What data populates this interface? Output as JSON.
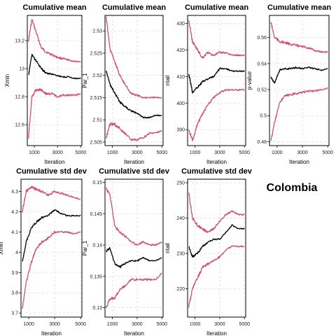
{
  "figure_label": "Colombia",
  "colors": {
    "mean": "#000000",
    "band": "#d64f6b",
    "grid": "#dddddd",
    "frame": "#000000"
  },
  "chart_data": [
    {
      "type": "line",
      "title": "Cumulative mean",
      "xlabel": "Iteration",
      "ylabel": "Xmin",
      "xlim": [
        400,
        5100
      ],
      "ylim": [
        12.45,
        13.38
      ],
      "xticks": [
        1000,
        3000,
        5000
      ],
      "yticks": [
        12.6,
        12.8,
        13.0,
        13.2
      ],
      "x": [
        500,
        800,
        1200,
        1600,
        2000,
        2500,
        3000,
        3500,
        4000,
        4500,
        5000
      ],
      "series": [
        {
          "role": "upper",
          "values": [
            13.2,
            13.35,
            13.25,
            13.15,
            13.12,
            13.1,
            13.08,
            13.07,
            13.06,
            13.05,
            13.05
          ]
        },
        {
          "role": "mean",
          "values": [
            12.95,
            13.1,
            13.05,
            13.0,
            12.97,
            12.96,
            12.95,
            12.94,
            12.94,
            12.93,
            12.93
          ]
        },
        {
          "role": "lower",
          "values": [
            12.5,
            12.8,
            12.85,
            12.85,
            12.82,
            12.82,
            12.8,
            12.81,
            12.81,
            12.81,
            12.82
          ]
        }
      ]
    },
    {
      "type": "line",
      "title": "Cumulative mean",
      "xlabel": "Iteration",
      "ylabel": "Par_1",
      "xlim": [
        400,
        5100
      ],
      "ylim": [
        2.5042,
        2.5335
      ],
      "xticks": [
        1000,
        3000,
        5000
      ],
      "yticks": [
        2.505,
        2.51,
        2.515,
        2.52,
        2.525,
        2.53
      ],
      "x": [
        500,
        800,
        1200,
        1600,
        2000,
        2500,
        3000,
        3500,
        4000,
        4500,
        5000
      ],
      "series": [
        {
          "role": "upper",
          "values": [
            2.533,
            2.526,
            2.523,
            2.52,
            2.518,
            2.516,
            2.5155,
            2.515,
            2.515,
            2.515,
            2.515
          ]
        },
        {
          "role": "mean",
          "values": [
            2.521,
            2.518,
            2.516,
            2.514,
            2.513,
            2.512,
            2.5115,
            2.5105,
            2.5105,
            2.511,
            2.511
          ]
        },
        {
          "role": "lower",
          "values": [
            2.506,
            2.509,
            2.509,
            2.508,
            2.507,
            2.5055,
            2.5055,
            2.506,
            2.507,
            2.507,
            2.5075
          ]
        }
      ]
    },
    {
      "type": "line",
      "title": "Cumulative mean",
      "xlabel": "Iteration",
      "ylabel": "ntail",
      "xlim": [
        400,
        5100
      ],
      "ylim": [
        384,
        433
      ],
      "xticks": [
        1000,
        3000,
        5000
      ],
      "yticks": [
        390,
        400,
        410,
        420,
        430
      ],
      "x": [
        500,
        800,
        1200,
        1600,
        2000,
        2500,
        3000,
        3500,
        4000,
        4500,
        5000
      ],
      "series": [
        {
          "role": "upper",
          "values": [
            431,
            423,
            420,
            417,
            419,
            418,
            419,
            419,
            418,
            418,
            418
          ]
        },
        {
          "role": "mean",
          "values": [
            411,
            404,
            406,
            408,
            409,
            410,
            413,
            413,
            412,
            412,
            412
          ]
        },
        {
          "role": "lower",
          "values": [
            390,
            386,
            392,
            396,
            399,
            402,
            404,
            405,
            405,
            405,
            405
          ]
        }
      ]
    },
    {
      "type": "line",
      "title": "Cumulative mean",
      "xlabel": "Iteration",
      "ylabel": "p-value",
      "xlim": [
        400,
        5100
      ],
      "ylim": [
        0.477,
        0.577
      ],
      "xticks": [
        1000,
        3000,
        5000
      ],
      "yticks": [
        0.48,
        0.5,
        0.52,
        0.54,
        0.56
      ],
      "x": [
        500,
        800,
        1200,
        1600,
        2000,
        2500,
        3000,
        3500,
        4000,
        4500,
        5000
      ],
      "series": [
        {
          "role": "upper",
          "values": [
            0.572,
            0.56,
            0.557,
            0.556,
            0.555,
            0.554,
            0.553,
            0.552,
            0.55,
            0.549,
            0.549
          ]
        },
        {
          "role": "mean",
          "values": [
            0.53,
            0.525,
            0.535,
            0.536,
            0.536,
            0.537,
            0.536,
            0.537,
            0.536,
            0.535,
            0.536
          ]
        },
        {
          "role": "lower",
          "values": [
            0.48,
            0.495,
            0.51,
            0.515,
            0.516,
            0.517,
            0.518,
            0.519,
            0.519,
            0.52,
            0.521
          ]
        }
      ]
    },
    {
      "type": "line",
      "title": "Cumulative std dev",
      "xlabel": "Iteration",
      "ylabel": "Xmin",
      "xlim": [
        400,
        5100
      ],
      "ylim": [
        3.68,
        4.36
      ],
      "xticks": [
        1000,
        3000,
        5000
      ],
      "yticks": [
        3.7,
        3.8,
        3.9,
        4.0,
        4.1,
        4.2,
        4.3
      ],
      "x": [
        500,
        800,
        1200,
        1600,
        2000,
        2500,
        3000,
        3500,
        4000,
        4500,
        5000
      ],
      "series": [
        {
          "role": "upper",
          "values": [
            4.2,
            4.3,
            4.32,
            4.31,
            4.3,
            4.28,
            4.3,
            4.29,
            4.28,
            4.27,
            4.26
          ]
        },
        {
          "role": "mean",
          "values": [
            3.95,
            4.05,
            4.12,
            4.15,
            4.17,
            4.18,
            4.21,
            4.19,
            4.18,
            4.18,
            4.18
          ]
        },
        {
          "role": "lower",
          "values": [
            3.72,
            3.85,
            3.95,
            4.02,
            4.05,
            4.07,
            4.1,
            4.1,
            4.1,
            4.09,
            4.1
          ]
        }
      ]
    },
    {
      "type": "line",
      "title": "Cumulative std dev",
      "xlabel": "Iteration",
      "ylabel": "Par_1",
      "xlim": [
        400,
        5100
      ],
      "ylim": [
        0.1285,
        0.1505
      ],
      "xticks": [
        1000,
        3000,
        5000
      ],
      "yticks": [
        0.13,
        0.135,
        0.14,
        0.145,
        0.15
      ],
      "x": [
        500,
        800,
        1200,
        1600,
        2000,
        2500,
        3000,
        3500,
        4000,
        4500,
        5000
      ],
      "series": [
        {
          "role": "upper",
          "values": [
            0.149,
            0.148,
            0.143,
            0.142,
            0.1415,
            0.1405,
            0.14,
            0.1405,
            0.14,
            0.14,
            0.1405
          ]
        },
        {
          "role": "mean",
          "values": [
            0.139,
            0.1395,
            0.137,
            0.1365,
            0.137,
            0.1375,
            0.1375,
            0.138,
            0.1375,
            0.1375,
            0.138
          ]
        },
        {
          "role": "lower",
          "values": [
            0.13,
            0.1315,
            0.1315,
            0.133,
            0.1335,
            0.1345,
            0.1345,
            0.1345,
            0.1345,
            0.1345,
            0.1355
          ]
        }
      ]
    },
    {
      "type": "line",
      "title": "Cumulative std dev",
      "xlabel": "Iteration",
      "ylabel": "ntail",
      "xlim": [
        400,
        5100
      ],
      "ylim": [
        212,
        251
      ],
      "xticks": [
        1000,
        3000,
        5000
      ],
      "yticks": [
        220,
        230,
        240,
        250
      ],
      "x": [
        500,
        800,
        1200,
        1600,
        2000,
        2500,
        3000,
        3500,
        4000,
        4500,
        5000
      ],
      "series": [
        {
          "role": "upper",
          "values": [
            247,
            240,
            238,
            237,
            236,
            237,
            239,
            241,
            242,
            241,
            241
          ]
        },
        {
          "role": "mean",
          "values": [
            232,
            229,
            230,
            232,
            233,
            234,
            234,
            236,
            238,
            237,
            237
          ]
        },
        {
          "role": "lower",
          "values": [
            215,
            220,
            223,
            226,
            227,
            228,
            229,
            231,
            232,
            232,
            232
          ]
        }
      ]
    }
  ]
}
